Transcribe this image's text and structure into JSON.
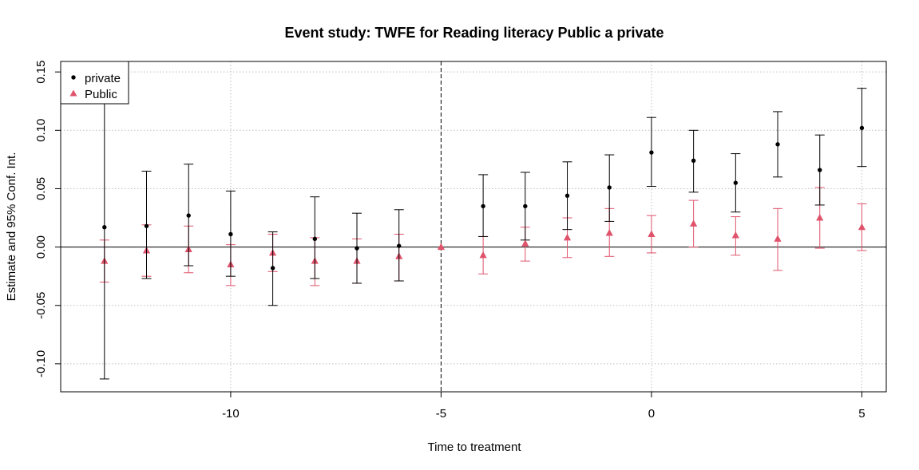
{
  "chart_data": {
    "type": "scatter",
    "title": "Event study: TWFE for Reading literacy Public a private",
    "xlabel": "Time to treatment",
    "ylabel": "Estimate and 95% Conf. Int.",
    "xlim": [
      -14.04,
      5.58
    ],
    "ylim": [
      -0.124,
      0.159
    ],
    "x_ticks": [
      -10,
      -5,
      0,
      5
    ],
    "x_tick_labels": [
      "-10",
      "-5",
      "0",
      "5"
    ],
    "y_ticks": [
      -0.1,
      -0.05,
      0.0,
      0.05,
      0.1,
      0.15
    ],
    "y_tick_labels": [
      "-0.10",
      "-0.05",
      "0.00",
      "0.05",
      "0.10",
      "0.15"
    ],
    "grid": true,
    "reference_vline": -5,
    "reference_hline": 0,
    "legend_position": "top-left",
    "series": [
      {
        "name": "private",
        "color": "#000000",
        "marker": "circle",
        "x": [
          -13,
          -12,
          -11,
          -10,
          -9,
          -8,
          -7,
          -6,
          -4,
          -3,
          -2,
          -1,
          0,
          1,
          2,
          3,
          4,
          5
        ],
        "estimate": [
          0.017,
          0.018,
          0.027,
          0.011,
          -0.018,
          0.007,
          -0.001,
          0.001,
          0.035,
          0.035,
          0.044,
          0.051,
          0.081,
          0.074,
          0.055,
          0.088,
          0.066,
          0.102
        ],
        "ci_low": [
          -0.113,
          -0.027,
          -0.016,
          -0.025,
          -0.05,
          -0.027,
          -0.031,
          -0.029,
          0.009,
          0.006,
          0.015,
          0.022,
          0.052,
          0.047,
          0.03,
          0.06,
          0.036,
          0.069
        ],
        "ci_high": [
          0.147,
          0.065,
          0.071,
          0.048,
          0.013,
          0.043,
          0.029,
          0.032,
          0.062,
          0.064,
          0.073,
          0.079,
          0.111,
          0.1,
          0.08,
          0.116,
          0.096,
          0.136
        ]
      },
      {
        "name": "Public",
        "color": "#DF536B",
        "marker": "triangle",
        "x": [
          -13,
          -12,
          -11,
          -10,
          -9,
          -8,
          -7,
          -6,
          -5,
          -4,
          -3,
          -2,
          -1,
          0,
          1,
          2,
          3,
          4,
          5
        ],
        "estimate": [
          -0.012,
          -0.003,
          -0.002,
          -0.015,
          -0.005,
          -0.012,
          -0.012,
          -0.008,
          0.0,
          -0.007,
          0.003,
          0.008,
          0.012,
          0.011,
          0.02,
          0.01,
          0.007,
          0.025,
          0.017
        ],
        "ci_low": [
          -0.03,
          -0.025,
          -0.022,
          -0.033,
          -0.021,
          -0.033,
          -0.031,
          -0.029,
          0.0,
          -0.023,
          -0.012,
          -0.009,
          -0.008,
          -0.005,
          0.0,
          -0.007,
          -0.02,
          -0.001,
          -0.003
        ],
        "ci_high": [
          0.006,
          0.019,
          0.018,
          0.002,
          0.011,
          0.008,
          0.007,
          0.011,
          0.0,
          0.009,
          0.017,
          0.025,
          0.033,
          0.027,
          0.04,
          0.026,
          0.033,
          0.051,
          0.037
        ]
      }
    ]
  }
}
